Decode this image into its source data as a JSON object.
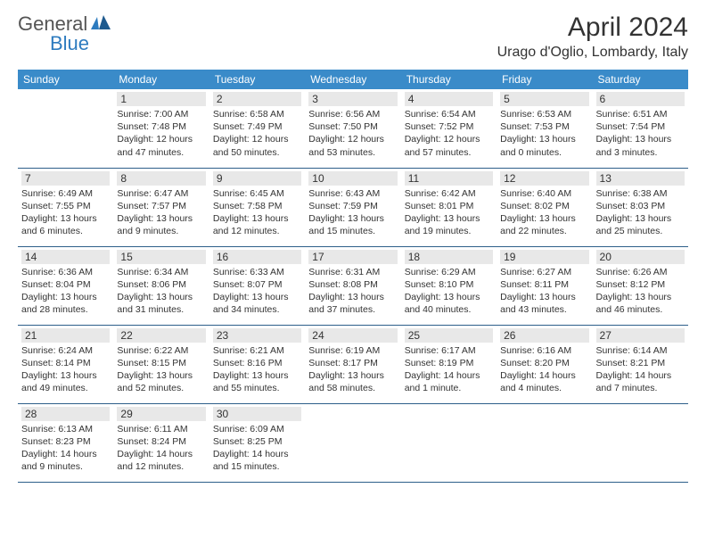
{
  "logo": {
    "text1": "General",
    "text2": "Blue",
    "icon_color": "#2d7bbf",
    "text1_color": "#555555",
    "text2_color": "#2d7bbf"
  },
  "title": "April 2024",
  "location": "Urago d'Oglio, Lombardy, Italy",
  "colors": {
    "header_bg": "#3a8bc9",
    "header_text": "#ffffff",
    "daynum_bg": "#e8e8e8",
    "border": "#2d5f8a",
    "text": "#333333"
  },
  "days_of_week": [
    "Sunday",
    "Monday",
    "Tuesday",
    "Wednesday",
    "Thursday",
    "Friday",
    "Saturday"
  ],
  "weeks": [
    {
      "cells": [
        {
          "empty": true
        },
        {
          "num": "1",
          "sunrise": "Sunrise: 7:00 AM",
          "sunset": "Sunset: 7:48 PM",
          "daylight1": "Daylight: 12 hours",
          "daylight2": "and 47 minutes."
        },
        {
          "num": "2",
          "sunrise": "Sunrise: 6:58 AM",
          "sunset": "Sunset: 7:49 PM",
          "daylight1": "Daylight: 12 hours",
          "daylight2": "and 50 minutes."
        },
        {
          "num": "3",
          "sunrise": "Sunrise: 6:56 AM",
          "sunset": "Sunset: 7:50 PM",
          "daylight1": "Daylight: 12 hours",
          "daylight2": "and 53 minutes."
        },
        {
          "num": "4",
          "sunrise": "Sunrise: 6:54 AM",
          "sunset": "Sunset: 7:52 PM",
          "daylight1": "Daylight: 12 hours",
          "daylight2": "and 57 minutes."
        },
        {
          "num": "5",
          "sunrise": "Sunrise: 6:53 AM",
          "sunset": "Sunset: 7:53 PM",
          "daylight1": "Daylight: 13 hours",
          "daylight2": "and 0 minutes."
        },
        {
          "num": "6",
          "sunrise": "Sunrise: 6:51 AM",
          "sunset": "Sunset: 7:54 PM",
          "daylight1": "Daylight: 13 hours",
          "daylight2": "and 3 minutes."
        }
      ]
    },
    {
      "cells": [
        {
          "num": "7",
          "sunrise": "Sunrise: 6:49 AM",
          "sunset": "Sunset: 7:55 PM",
          "daylight1": "Daylight: 13 hours",
          "daylight2": "and 6 minutes."
        },
        {
          "num": "8",
          "sunrise": "Sunrise: 6:47 AM",
          "sunset": "Sunset: 7:57 PM",
          "daylight1": "Daylight: 13 hours",
          "daylight2": "and 9 minutes."
        },
        {
          "num": "9",
          "sunrise": "Sunrise: 6:45 AM",
          "sunset": "Sunset: 7:58 PM",
          "daylight1": "Daylight: 13 hours",
          "daylight2": "and 12 minutes."
        },
        {
          "num": "10",
          "sunrise": "Sunrise: 6:43 AM",
          "sunset": "Sunset: 7:59 PM",
          "daylight1": "Daylight: 13 hours",
          "daylight2": "and 15 minutes."
        },
        {
          "num": "11",
          "sunrise": "Sunrise: 6:42 AM",
          "sunset": "Sunset: 8:01 PM",
          "daylight1": "Daylight: 13 hours",
          "daylight2": "and 19 minutes."
        },
        {
          "num": "12",
          "sunrise": "Sunrise: 6:40 AM",
          "sunset": "Sunset: 8:02 PM",
          "daylight1": "Daylight: 13 hours",
          "daylight2": "and 22 minutes."
        },
        {
          "num": "13",
          "sunrise": "Sunrise: 6:38 AM",
          "sunset": "Sunset: 8:03 PM",
          "daylight1": "Daylight: 13 hours",
          "daylight2": "and 25 minutes."
        }
      ]
    },
    {
      "cells": [
        {
          "num": "14",
          "sunrise": "Sunrise: 6:36 AM",
          "sunset": "Sunset: 8:04 PM",
          "daylight1": "Daylight: 13 hours",
          "daylight2": "and 28 minutes."
        },
        {
          "num": "15",
          "sunrise": "Sunrise: 6:34 AM",
          "sunset": "Sunset: 8:06 PM",
          "daylight1": "Daylight: 13 hours",
          "daylight2": "and 31 minutes."
        },
        {
          "num": "16",
          "sunrise": "Sunrise: 6:33 AM",
          "sunset": "Sunset: 8:07 PM",
          "daylight1": "Daylight: 13 hours",
          "daylight2": "and 34 minutes."
        },
        {
          "num": "17",
          "sunrise": "Sunrise: 6:31 AM",
          "sunset": "Sunset: 8:08 PM",
          "daylight1": "Daylight: 13 hours",
          "daylight2": "and 37 minutes."
        },
        {
          "num": "18",
          "sunrise": "Sunrise: 6:29 AM",
          "sunset": "Sunset: 8:10 PM",
          "daylight1": "Daylight: 13 hours",
          "daylight2": "and 40 minutes."
        },
        {
          "num": "19",
          "sunrise": "Sunrise: 6:27 AM",
          "sunset": "Sunset: 8:11 PM",
          "daylight1": "Daylight: 13 hours",
          "daylight2": "and 43 minutes."
        },
        {
          "num": "20",
          "sunrise": "Sunrise: 6:26 AM",
          "sunset": "Sunset: 8:12 PM",
          "daylight1": "Daylight: 13 hours",
          "daylight2": "and 46 minutes."
        }
      ]
    },
    {
      "cells": [
        {
          "num": "21",
          "sunrise": "Sunrise: 6:24 AM",
          "sunset": "Sunset: 8:14 PM",
          "daylight1": "Daylight: 13 hours",
          "daylight2": "and 49 minutes."
        },
        {
          "num": "22",
          "sunrise": "Sunrise: 6:22 AM",
          "sunset": "Sunset: 8:15 PM",
          "daylight1": "Daylight: 13 hours",
          "daylight2": "and 52 minutes."
        },
        {
          "num": "23",
          "sunrise": "Sunrise: 6:21 AM",
          "sunset": "Sunset: 8:16 PM",
          "daylight1": "Daylight: 13 hours",
          "daylight2": "and 55 minutes."
        },
        {
          "num": "24",
          "sunrise": "Sunrise: 6:19 AM",
          "sunset": "Sunset: 8:17 PM",
          "daylight1": "Daylight: 13 hours",
          "daylight2": "and 58 minutes."
        },
        {
          "num": "25",
          "sunrise": "Sunrise: 6:17 AM",
          "sunset": "Sunset: 8:19 PM",
          "daylight1": "Daylight: 14 hours",
          "daylight2": "and 1 minute."
        },
        {
          "num": "26",
          "sunrise": "Sunrise: 6:16 AM",
          "sunset": "Sunset: 8:20 PM",
          "daylight1": "Daylight: 14 hours",
          "daylight2": "and 4 minutes."
        },
        {
          "num": "27",
          "sunrise": "Sunrise: 6:14 AM",
          "sunset": "Sunset: 8:21 PM",
          "daylight1": "Daylight: 14 hours",
          "daylight2": "and 7 minutes."
        }
      ]
    },
    {
      "cells": [
        {
          "num": "28",
          "sunrise": "Sunrise: 6:13 AM",
          "sunset": "Sunset: 8:23 PM",
          "daylight1": "Daylight: 14 hours",
          "daylight2": "and 9 minutes."
        },
        {
          "num": "29",
          "sunrise": "Sunrise: 6:11 AM",
          "sunset": "Sunset: 8:24 PM",
          "daylight1": "Daylight: 14 hours",
          "daylight2": "and 12 minutes."
        },
        {
          "num": "30",
          "sunrise": "Sunrise: 6:09 AM",
          "sunset": "Sunset: 8:25 PM",
          "daylight1": "Daylight: 14 hours",
          "daylight2": "and 15 minutes."
        },
        {
          "empty": true
        },
        {
          "empty": true
        },
        {
          "empty": true
        },
        {
          "empty": true
        }
      ]
    }
  ]
}
